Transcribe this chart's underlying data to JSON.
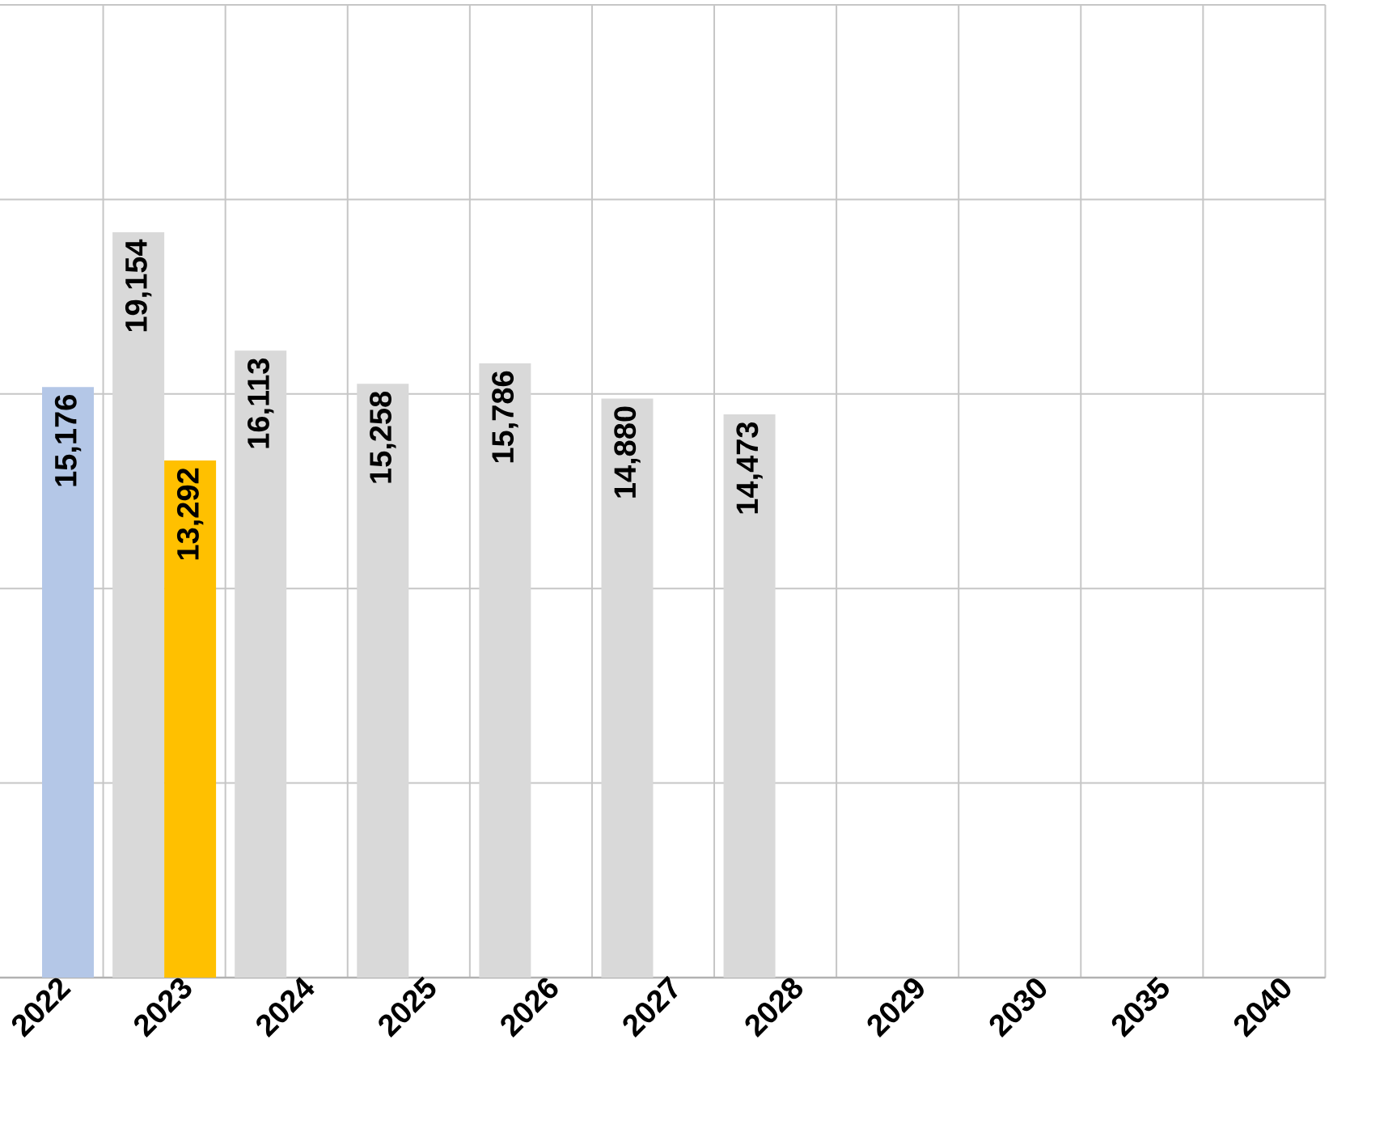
{
  "chart_data": {
    "type": "bar",
    "categories": [
      "2022",
      "2023",
      "2024",
      "2025",
      "2026",
      "2027",
      "2028",
      "2029",
      "2030",
      "2035",
      "2040"
    ],
    "series": [
      {
        "color": "#d9d9d9",
        "values": [
          null,
          19154,
          16113,
          15258,
          15786,
          14880,
          14473,
          null,
          null,
          null,
          null
        ],
        "value_labels": [
          null,
          "19,154",
          "16,113",
          "15,258",
          "15,786",
          "14,880",
          "14,473",
          null,
          null,
          null,
          null
        ]
      },
      {
        "colors": [
          "#b4c7e7",
          "#ffc000",
          null,
          null,
          null,
          null,
          null,
          null,
          null,
          null,
          null
        ],
        "values": [
          15176,
          13292,
          null,
          null,
          null,
          null,
          null,
          null,
          null,
          null,
          null
        ],
        "value_labels": [
          "15,176",
          "13,292",
          null,
          null,
          null,
          null,
          null,
          null,
          null,
          null,
          null
        ]
      }
    ],
    "ylim": [
      0,
      25000
    ],
    "yticks": [
      {
        "value": 0,
        "label": null
      },
      {
        "value": 5000,
        "label": null
      },
      {
        "value": 10000,
        "label": null
      },
      {
        "value": 15000,
        "label": null
      },
      {
        "value": 20000,
        "label": null
      },
      {
        "value": 25000,
        "label": null
      }
    ],
    "grid": true,
    "tick_labels": "x"
  }
}
